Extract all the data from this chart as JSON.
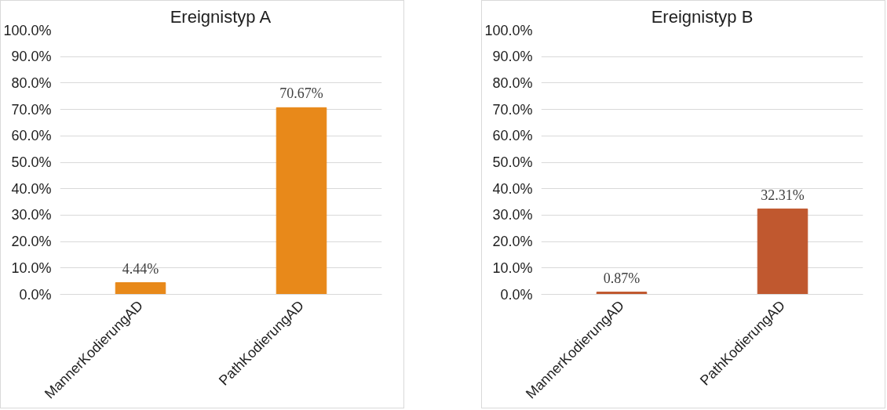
{
  "chart_data": [
    {
      "type": "bar",
      "title": "Ereignistyp A",
      "categories": [
        "MannerKodierungAD",
        "PathKodierungAD"
      ],
      "values": [
        4.44,
        70.67
      ],
      "color": "#e8891a",
      "value_labels": [
        "4.44%",
        "70.67%"
      ],
      "ylim": [
        0,
        100
      ],
      "yticks": [
        {
          "value": 0,
          "label": "0.0%"
        },
        {
          "value": 10,
          "label": "10.0%"
        },
        {
          "value": 20,
          "label": "20.0%"
        },
        {
          "value": 30,
          "label": "30.0%"
        },
        {
          "value": 40,
          "label": "40.0%"
        },
        {
          "value": 50,
          "label": "50.0%"
        },
        {
          "value": 60,
          "label": "60.0%"
        },
        {
          "value": 70,
          "label": "70.0%"
        },
        {
          "value": 80,
          "label": "80.0%"
        },
        {
          "value": 90,
          "label": "90.0%"
        },
        {
          "value": 100,
          "label": "100.0%"
        }
      ],
      "grid": "y",
      "legend": false
    },
    {
      "type": "bar",
      "title": "Ereignistyp B",
      "categories": [
        "MannerKodierungAD",
        "PathKodierungAD"
      ],
      "values": [
        0.87,
        32.31
      ],
      "color": "#c0582f",
      "value_labels": [
        "0.87%",
        "32.31%"
      ],
      "ylim": [
        0,
        100
      ],
      "yticks": [
        {
          "value": 0,
          "label": "0.0%"
        },
        {
          "value": 10,
          "label": "10.0%"
        },
        {
          "value": 20,
          "label": "20.0%"
        },
        {
          "value": 30,
          "label": "30.0%"
        },
        {
          "value": 40,
          "label": "40.0%"
        },
        {
          "value": 50,
          "label": "50.0%"
        },
        {
          "value": 60,
          "label": "60.0%"
        },
        {
          "value": 70,
          "label": "70.0%"
        },
        {
          "value": 80,
          "label": "80.0%"
        },
        {
          "value": 90,
          "label": "90.0%"
        },
        {
          "value": 100,
          "label": "100.0%"
        }
      ],
      "grid": "y",
      "legend": false
    }
  ]
}
